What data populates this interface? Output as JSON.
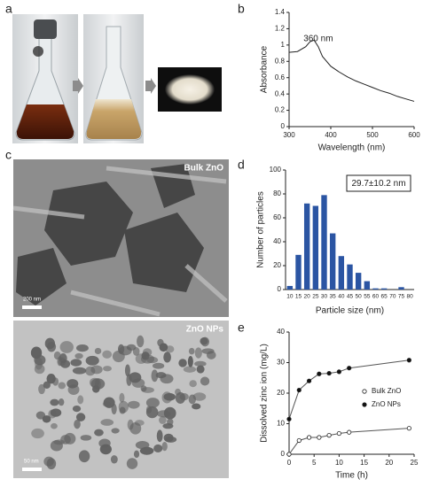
{
  "panel_labels": [
    "a",
    "b",
    "c",
    "d",
    "e"
  ],
  "images": {
    "tem_top_label": "Bulk ZnO",
    "tem_top_scale": "200 nm",
    "tem_bottom_label": "ZnO NPs",
    "tem_bottom_scale": "50 nm"
  },
  "chart_data": [
    {
      "type": "line",
      "xlabel": "Wavelength (nm)",
      "ylabel": "Absorbance",
      "annotation": "360 nm",
      "color": "#222222",
      "x": [
        300,
        320,
        340,
        350,
        360,
        370,
        380,
        400,
        420,
        440,
        460,
        480,
        500,
        520,
        540,
        560,
        580,
        600
      ],
      "values": [
        0.91,
        0.92,
        0.98,
        1.04,
        1.06,
        0.98,
        0.86,
        0.74,
        0.67,
        0.61,
        0.56,
        0.52,
        0.48,
        0.44,
        0.41,
        0.37,
        0.34,
        0.31
      ],
      "xlim": [
        300,
        600
      ],
      "xticks": [
        300,
        400,
        500,
        600
      ],
      "ylim": [
        0,
        1.4
      ],
      "yticks": [
        0,
        0.2,
        0.4,
        0.6,
        0.8,
        1,
        1.2,
        1.4
      ]
    },
    {
      "type": "bar",
      "xlabel": "Particle size (nm)",
      "ylabel": "Number of particles",
      "annotation": "29.7±10.2 nm",
      "color": "#2b55a3",
      "categories": [
        "10",
        "15",
        "20",
        "25",
        "30",
        "35",
        "40",
        "45",
        "50",
        "55",
        "60",
        "65",
        "70",
        "75",
        "80"
      ],
      "values": [
        3,
        29,
        72,
        70,
        79,
        47,
        28,
        21,
        14,
        7,
        1,
        1,
        0,
        2,
        0
      ],
      "ylim": [
        0,
        100
      ],
      "yticks": [
        0,
        20,
        40,
        60,
        80,
        100
      ]
    },
    {
      "type": "line",
      "xlabel": "Time (h)",
      "ylabel": "Dissolved zinc ion (mg/L)",
      "legend": "center right",
      "x": [
        0,
        2,
        4,
        6,
        8,
        10,
        12,
        24
      ],
      "series": [
        {
          "name": "Bulk ZnO",
          "color": "#555555",
          "marker_fill": "#ffffff",
          "values": [
            0,
            4.5,
            5.5,
            5.5,
            6.2,
            6.8,
            7.2,
            8.5
          ]
        },
        {
          "name": "ZnO NPs",
          "color": "#555555",
          "marker_fill": "#111111",
          "values": [
            11.5,
            21,
            24,
            26.3,
            26.5,
            27,
            28.2,
            30.8
          ]
        }
      ],
      "xlim": [
        0,
        25
      ],
      "xticks": [
        0,
        5,
        10,
        15,
        20,
        25
      ],
      "ylim": [
        0,
        40
      ],
      "yticks": [
        0,
        10,
        20,
        30,
        40
      ]
    }
  ]
}
